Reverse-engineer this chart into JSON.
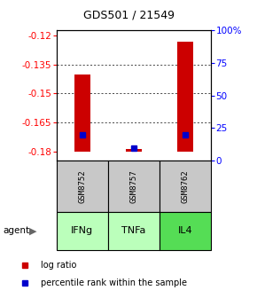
{
  "title": "GDS501 / 21549",
  "samples": [
    "GSM8752",
    "GSM8757",
    "GSM8762"
  ],
  "agents": [
    "IFNg",
    "TNFa",
    "IL4"
  ],
  "log_ratio_values": [
    -0.14,
    -0.179,
    -0.123
  ],
  "log_ratio_base": -0.18,
  "percentile_values": [
    20,
    10,
    20
  ],
  "ylim_left": [
    -0.185,
    -0.117
  ],
  "yticks_left": [
    -0.18,
    -0.165,
    -0.15,
    -0.135,
    -0.12
  ],
  "yticks_right": [
    0,
    25,
    50,
    75,
    100
  ],
  "bar_color": "#cc0000",
  "percentile_color": "#0000cc",
  "agent_colors": [
    "#bbffbb",
    "#bbffbb",
    "#55dd55"
  ],
  "sample_box_color": "#c8c8c8",
  "legend_items": [
    "log ratio",
    "percentile rank within the sample"
  ],
  "background_color": "#ffffff"
}
